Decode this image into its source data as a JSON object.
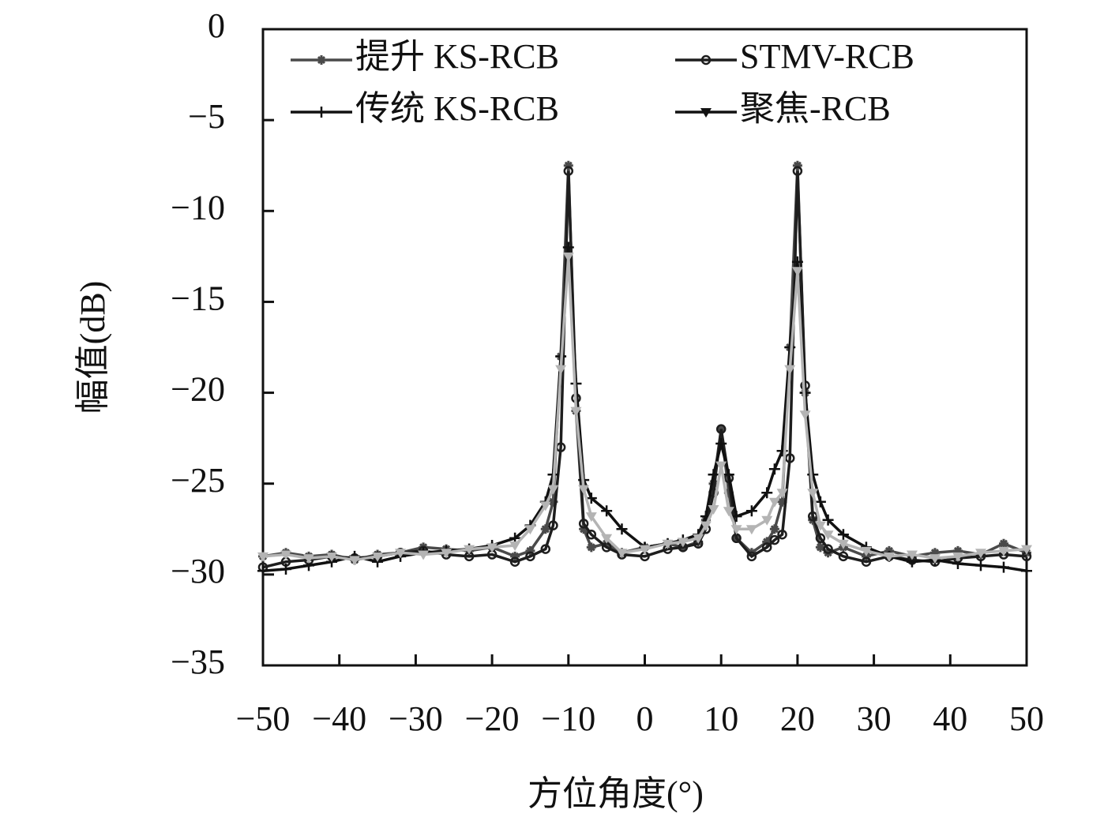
{
  "chart_data": {
    "type": "line",
    "x_label": "方位角度(°)",
    "y_label": "幅值(dB)",
    "x": [
      -50,
      -47,
      -44,
      -41,
      -38,
      -35,
      -32,
      -29,
      -26,
      -23,
      -20,
      -17,
      -15,
      -13,
      -12,
      -11,
      -10,
      -9,
      -8,
      -7,
      -5,
      -3,
      0,
      3,
      5,
      7,
      8,
      9,
      10,
      11,
      12,
      14,
      16,
      17,
      18,
      19,
      20,
      21,
      22,
      23,
      24,
      26,
      29,
      32,
      35,
      38,
      41,
      44,
      47,
      50
    ],
    "series": [
      {
        "name": "提升 KS-RCB",
        "color": "#4a4a4a",
        "marker": "asterisk",
        "values": [
          -29,
          -28.8,
          -29,
          -28.9,
          -29.2,
          -28.9,
          -28.8,
          -28.5,
          -28.6,
          -28.7,
          -28.5,
          -29,
          -28.7,
          -27.5,
          -26,
          -18,
          -7.5,
          -21,
          -27.5,
          -28.5,
          -28.3,
          -28.8,
          -28.5,
          -28.3,
          -28.5,
          -28.2,
          -27,
          -25,
          -22,
          -25.5,
          -28,
          -28.8,
          -28.2,
          -27.5,
          -26,
          -17.5,
          -7.5,
          -20,
          -27,
          -28.5,
          -28.8,
          -28.5,
          -29,
          -28.7,
          -29,
          -28.8,
          -28.7,
          -28.9,
          -28.3,
          -28.8
        ]
      },
      {
        "name": "STMV-RCB",
        "color": "#1e1e1e",
        "marker": "circle",
        "values": [
          -29.6,
          -29.3,
          -29.2,
          -29,
          -29.1,
          -29,
          -28.8,
          -28.7,
          -28.9,
          -29,
          -28.9,
          -29.3,
          -29,
          -28.6,
          -27.3,
          -23,
          -7.8,
          -20.3,
          -27.2,
          -27.8,
          -28.5,
          -28.9,
          -29,
          -28.6,
          -28.5,
          -28.3,
          -27.5,
          -25.5,
          -22,
          -24.7,
          -28,
          -29,
          -28.5,
          -28.1,
          -27.8,
          -23.6,
          -7.8,
          -19.6,
          -26.8,
          -28,
          -28.6,
          -29,
          -29.3,
          -29,
          -29.2,
          -29.3,
          -29.1,
          -29,
          -28.9,
          -29
        ]
      },
      {
        "name": "传统 KS-RCB",
        "color": "#111111",
        "marker": "plus",
        "values": [
          -29.8,
          -29.7,
          -29.5,
          -29.3,
          -29,
          -29.3,
          -29,
          -28.8,
          -28.7,
          -28.6,
          -28.4,
          -28,
          -27.3,
          -26,
          -24.5,
          -18,
          -12,
          -19.5,
          -24.8,
          -25.8,
          -26.5,
          -27.5,
          -28.5,
          -28.3,
          -28.1,
          -27.8,
          -26.8,
          -24.5,
          -22.8,
          -24.5,
          -26.8,
          -26.5,
          -25.5,
          -24.2,
          -23.2,
          -17.5,
          -12.8,
          -20,
          -24.5,
          -26,
          -27,
          -27.8,
          -28.5,
          -29,
          -29.3,
          -29.2,
          -29.4,
          -29.5,
          -29.6,
          -29.8
        ]
      },
      {
        "name": "聚焦-RCB",
        "color": "#b4b4b4",
        "marker": "triangle-down",
        "values": [
          -29,
          -28.9,
          -29.1,
          -29,
          -29.2,
          -29,
          -28.8,
          -28.9,
          -28.8,
          -28.6,
          -28.5,
          -28.4,
          -27.5,
          -26.2,
          -25.3,
          -18.7,
          -12.5,
          -21,
          -25.3,
          -26.8,
          -28,
          -28.8,
          -28.6,
          -28.3,
          -28.2,
          -28,
          -27.3,
          -26.4,
          -24,
          -26.5,
          -27.5,
          -27.5,
          -27,
          -26,
          -25.5,
          -18.7,
          -13.3,
          -21.2,
          -25.5,
          -27.3,
          -27.8,
          -28.3,
          -28.7,
          -29,
          -28.9,
          -29.1,
          -29,
          -28.8,
          -28.7,
          -28.6
        ]
      }
    ],
    "xlim": [
      -50,
      50
    ],
    "xticks": [
      {
        "value": -50,
        "label": "−50"
      },
      {
        "value": -40,
        "label": "−40"
      },
      {
        "value": -30,
        "label": "−30"
      },
      {
        "value": -20,
        "label": "−20"
      },
      {
        "value": -10,
        "label": "−10"
      },
      0,
      10,
      20,
      30,
      40,
      50
    ],
    "ylim": [
      -35,
      0
    ],
    "yticks": [
      0,
      {
        "value": -5,
        "label": "−5"
      },
      {
        "value": -10,
        "label": "−10"
      },
      {
        "value": -15,
        "label": "−15"
      },
      {
        "value": -20,
        "label": "−20"
      },
      {
        "value": -25,
        "label": "−25"
      },
      {
        "value": -30,
        "label": "−30"
      },
      {
        "value": -35,
        "label": "−35"
      }
    ],
    "grid": false,
    "legend": "top"
  }
}
